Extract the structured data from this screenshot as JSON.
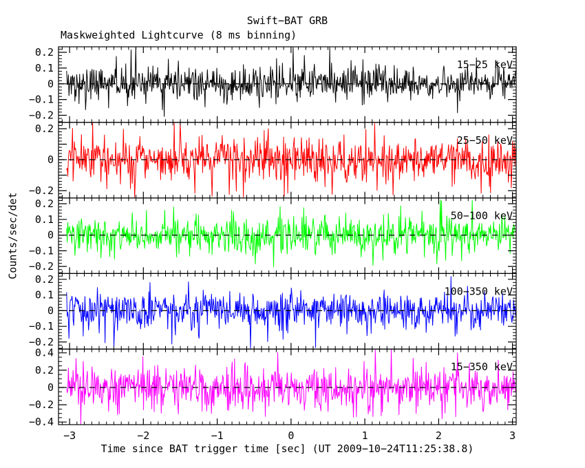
{
  "header": {
    "title": "Swift−BAT GRB",
    "subtitle": "Maskweighted Lightcurve (8 ms binning)"
  },
  "axes": {
    "xlabel": "Time since BAT trigger time [sec] (UT 2009−10−24T11:25:38.8)",
    "ylabel": "Counts/sec/det"
  },
  "chart_data": {
    "type": "line",
    "title": "Swift−BAT GRB",
    "subtitle": "Maskweighted Lightcurve (8 ms binning)",
    "xlabel": "Time since BAT trigger time [sec] (UT 2009−10−24T11:25:38.8)",
    "ylabel": "Counts/sec/det",
    "grid": false,
    "legend_position": "inside-top-right-per-panel",
    "x_range": [
      -3.15,
      3.05
    ],
    "x_major_ticks": [
      -3,
      -2,
      -1,
      0,
      1,
      2,
      3
    ],
    "x_major_tick_labels": [
      "−3",
      "−2",
      "−1",
      "0",
      "1",
      "2",
      "3"
    ],
    "x_minor_tick_step": 0.1,
    "time_bin_seconds": 0.008,
    "points_per_series": 760,
    "series_t_start": -3.04,
    "series_t_end": 3.04,
    "zero_line_style": "dashed-black",
    "panels": [
      {
        "band_label": "15−25 keV",
        "color": "#000000",
        "ylim": [
          -0.245,
          0.235
        ],
        "major_ticks": [
          0.2,
          0.1,
          0,
          -0.1,
          -0.2
        ],
        "major_tick_labels": [
          "0.2",
          "0.1",
          "0",
          "−0.1",
          "−0.2"
        ],
        "minor_tick_step": 0.02,
        "noise_mean": 0,
        "noise_sigma": 0.052,
        "seed": 1015
      },
      {
        "band_label": "25−50 keV",
        "color": "#ff0000",
        "ylim": [
          -0.247,
          0.241
        ],
        "major_ticks": [
          0.2,
          0.1,
          0,
          -0.1,
          -0.2
        ],
        "major_tick_labels": [
          "0.2",
          "",
          "0",
          "",
          "−0.2"
        ],
        "minor_tick_step": 0.02,
        "noise_mean": 0,
        "noise_sigma": 0.068,
        "seed": 2025
      },
      {
        "band_label": "50−100 keV",
        "color": "#00ff00",
        "ylim": [
          -0.245,
          0.237
        ],
        "major_ticks": [
          0.2,
          0.1,
          0,
          -0.1,
          -0.2
        ],
        "major_tick_labels": [
          "0.2",
          "0.1",
          "0",
          "−0.1",
          "−0.2"
        ],
        "minor_tick_step": 0.02,
        "noise_mean": 0,
        "noise_sigma": 0.058,
        "seed": 3050
      },
      {
        "band_label": "100−350 keV",
        "color": "#0000ff",
        "ylim": [
          -0.245,
          0.237
        ],
        "major_ticks": [
          0.2,
          0.1,
          0,
          -0.1,
          -0.2
        ],
        "major_tick_labels": [
          "0.2",
          "0.1",
          "0",
          "−0.1",
          "−0.2"
        ],
        "minor_tick_step": 0.02,
        "noise_mean": 0,
        "noise_sigma": 0.058,
        "seed": 4100
      },
      {
        "band_label": "15−350 keV",
        "color": "#ff00ff",
        "ylim": [
          -0.43,
          0.444
        ],
        "major_ticks": [
          0.4,
          0.2,
          0,
          -0.2,
          -0.4
        ],
        "major_tick_labels": [
          "0.4",
          "0.2",
          "0",
          "−0.2",
          "−0.4"
        ],
        "minor_tick_step": 0.05,
        "noise_mean": 0,
        "noise_sigma": 0.115,
        "seed": 5350
      }
    ]
  }
}
